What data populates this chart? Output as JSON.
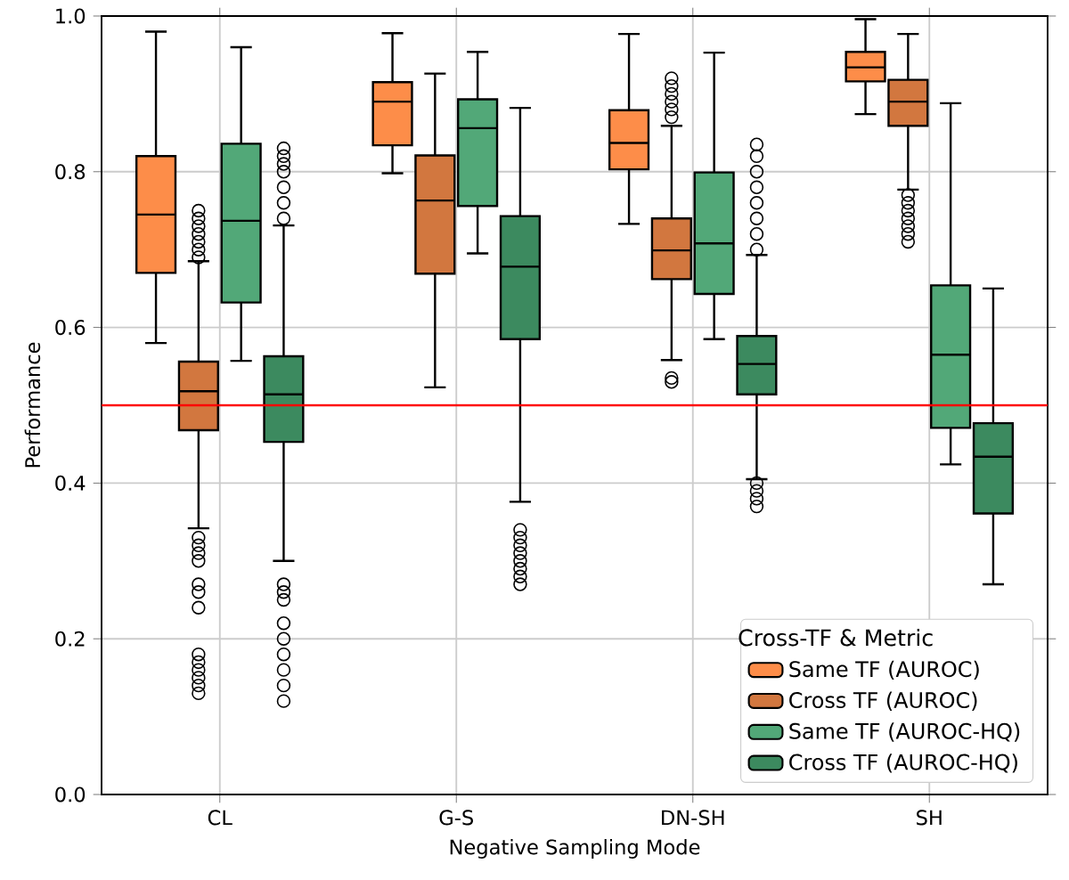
{
  "chart_data": {
    "type": "box",
    "xlabel": "Negative Sampling Mode",
    "ylabel": "Performance",
    "legend_title": "Cross-TF & Metric",
    "legend": "bottom right",
    "grid": true,
    "categories": [
      "CL",
      "G-S",
      "DN-SH",
      "SH"
    ],
    "ylim": [
      0,
      1
    ],
    "yticks": [
      {
        "value": 0,
        "label": "0.0"
      },
      {
        "value": 0.2,
        "label": "0.2"
      },
      {
        "value": 0.4,
        "label": "0.4"
      },
      {
        "value": 0.6,
        "label": "0.6"
      },
      {
        "value": 0.8,
        "label": "0.8"
      },
      {
        "value": 1,
        "label": "1.0"
      }
    ],
    "ref_lines": [
      {
        "axis": "y",
        "value": 0.5,
        "color": "#ff0000"
      }
    ],
    "series": [
      {
        "name": "Same TF (AUROC)",
        "color": "#fd8d49",
        "boxes": [
          {
            "low": 0.58,
            "q1": 0.67,
            "median": 0.745,
            "q3": 0.82,
            "high": 0.98
          },
          {
            "low": 0.798,
            "q1": 0.834,
            "median": 0.89,
            "q3": 0.915,
            "high": 0.978
          },
          {
            "low": 0.733,
            "q1": 0.803,
            "median": 0.837,
            "q3": 0.879,
            "high": 0.977
          },
          {
            "low": 0.874,
            "q1": 0.916,
            "median": 0.934,
            "q3": 0.954,
            "high": 0.996
          }
        ]
      },
      {
        "name": "Cross TF (AUROC)",
        "color": "#d2773f",
        "boxes": [
          {
            "low": 0.342,
            "q1": 0.468,
            "median": 0.518,
            "q3": 0.556,
            "high": 0.685,
            "outliers": [
              0.69,
              0.7,
              0.71,
              0.72,
              0.73,
              0.74,
              0.75,
              0.33,
              0.32,
              0.31,
              0.3,
              0.27,
              0.26,
              0.24,
              0.18,
              0.17,
              0.16,
              0.15,
              0.14,
              0.13
            ]
          },
          {
            "low": 0.523,
            "q1": 0.669,
            "median": 0.763,
            "q3": 0.821,
            "high": 0.926
          },
          {
            "low": 0.558,
            "q1": 0.662,
            "median": 0.699,
            "q3": 0.74,
            "high": 0.859,
            "outliers": [
              0.87,
              0.88,
              0.89,
              0.9,
              0.91,
              0.92,
              0.535,
              0.53
            ]
          },
          {
            "low": 0.777,
            "q1": 0.859,
            "median": 0.89,
            "q3": 0.918,
            "high": 0.977,
            "outliers": [
              0.77,
              0.76,
              0.75,
              0.74,
              0.73,
              0.72,
              0.71
            ]
          }
        ]
      },
      {
        "name": "Same TF (AUROC-HQ)",
        "color": "#52a878",
        "boxes": [
          {
            "low": 0.557,
            "q1": 0.632,
            "median": 0.737,
            "q3": 0.836,
            "high": 0.96
          },
          {
            "low": 0.695,
            "q1": 0.756,
            "median": 0.856,
            "q3": 0.893,
            "high": 0.954
          },
          {
            "low": 0.585,
            "q1": 0.643,
            "median": 0.708,
            "q3": 0.799,
            "high": 0.953
          },
          {
            "low": 0.424,
            "q1": 0.471,
            "median": 0.565,
            "q3": 0.654,
            "high": 0.888
          }
        ]
      },
      {
        "name": "Cross TF (AUROC-HQ)",
        "color": "#3c8a5f",
        "boxes": [
          {
            "low": 0.3,
            "q1": 0.453,
            "median": 0.514,
            "q3": 0.563,
            "high": 0.731,
            "outliers": [
              0.74,
              0.76,
              0.78,
              0.8,
              0.81,
              0.82,
              0.83,
              0.27,
              0.26,
              0.25,
              0.22,
              0.2,
              0.18,
              0.16,
              0.14,
              0.12
            ]
          },
          {
            "low": 0.376,
            "q1": 0.585,
            "median": 0.678,
            "q3": 0.743,
            "high": 0.882,
            "outliers": [
              0.34,
              0.33,
              0.32,
              0.31,
              0.3,
              0.29,
              0.28,
              0.27
            ]
          },
          {
            "low": 0.405,
            "q1": 0.514,
            "median": 0.553,
            "q3": 0.589,
            "high": 0.693,
            "outliers": [
              0.7,
              0.72,
              0.74,
              0.76,
              0.78,
              0.8,
              0.82,
              0.835,
              0.4,
              0.39,
              0.38,
              0.37
            ]
          },
          {
            "low": 0.27,
            "q1": 0.361,
            "median": 0.434,
            "q3": 0.477,
            "high": 0.65
          }
        ]
      }
    ]
  }
}
